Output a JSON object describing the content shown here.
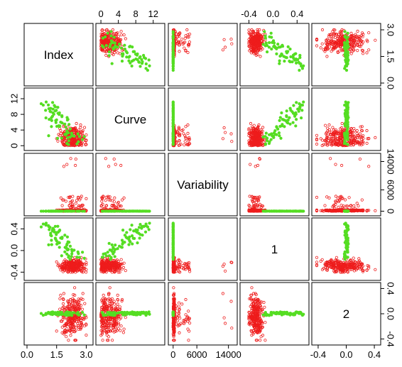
{
  "chart_data": {
    "type": "scatter",
    "plot": "scatterplot-matrix",
    "variables": [
      "Index",
      "Curve",
      "Variability",
      "1",
      "2"
    ],
    "ranges": {
      "Index": [
        0,
        3.2
      ],
      "Curve": [
        -0.5,
        14
      ],
      "Variability": [
        -500,
        15500
      ],
      "1": [
        -0.5,
        0.55
      ],
      "2": [
        -0.45,
        0.45
      ]
    },
    "ticks": {
      "Index": [
        "0.0",
        "1.5",
        "3.0"
      ],
      "Curve": [
        "0",
        "4",
        "8",
        "12"
      ],
      "Variability": [
        "0",
        "6000",
        "14000"
      ],
      "1": [
        "-0.4",
        "0.0",
        "0.4"
      ],
      "2": [
        "-0.4",
        "0.0",
        "0.4"
      ]
    },
    "series": [
      {
        "color": "#ee1c1c",
        "marker": "open-circle",
        "centers": {
          "Index": 2.3,
          "Curve": 2.0,
          "Variability": 150,
          "1": -0.28,
          "2": -0.05
        },
        "spreads": {
          "Index": 0.32,
          "Curve": 1.3,
          "Variability": 500,
          "1": 0.06,
          "2": 0.16
        },
        "n": 260
      },
      {
        "color": "#55dd22",
        "marker": "filled-circle",
        "centers": {
          "Index": 1.6,
          "Curve": 6.0,
          "Variability": 0,
          "1": 0.2,
          "2": 0.0
        },
        "n": 70
      }
    ]
  }
}
